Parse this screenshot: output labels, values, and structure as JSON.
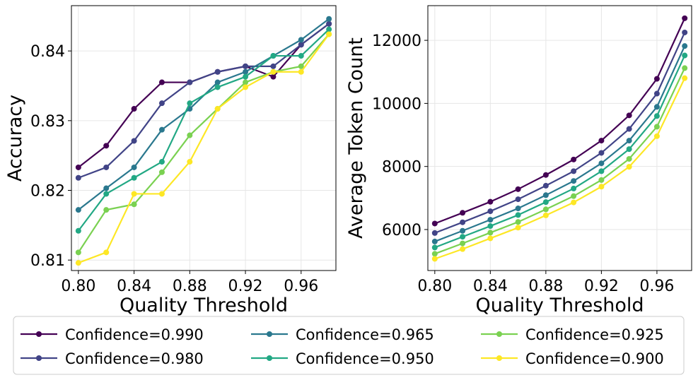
{
  "chart_data": [
    {
      "type": "line",
      "xlabel": "Quality Threshold",
      "ylabel": "Accuracy",
      "xlim": [
        0.795,
        0.985
      ],
      "ylim": [
        0.8085,
        0.8465
      ],
      "xticks": [
        0.8,
        0.84,
        0.88,
        0.92,
        0.96
      ],
      "xtick_labels": [
        "0.80",
        "0.84",
        "0.88",
        "0.92",
        "0.96"
      ],
      "yticks": [
        0.81,
        0.82,
        0.83,
        0.84
      ],
      "ytick_labels": [
        "0.81",
        "0.82",
        "0.83",
        "0.84"
      ],
      "grid": true,
      "x": [
        0.8,
        0.82,
        0.84,
        0.86,
        0.88,
        0.9,
        0.92,
        0.94,
        0.96,
        0.98
      ],
      "series": [
        {
          "name": "Confidence=0.990",
          "color": "#440154",
          "values": [
            0.8233,
            0.8264,
            0.8317,
            0.8355,
            0.8355,
            0.837,
            0.8378,
            0.8363,
            0.8409,
            0.8439
          ]
        },
        {
          "name": "Confidence=0.980",
          "color": "#414487",
          "values": [
            0.8218,
            0.8233,
            0.8271,
            0.8325,
            0.8355,
            0.837,
            0.8378,
            0.8378,
            0.8409,
            0.8439
          ]
        },
        {
          "name": "Confidence=0.965",
          "color": "#2a788e",
          "values": [
            0.8172,
            0.8203,
            0.8233,
            0.8287,
            0.8317,
            0.8355,
            0.837,
            0.8393,
            0.8416,
            0.8446
          ]
        },
        {
          "name": "Confidence=0.950",
          "color": "#22a884",
          "values": [
            0.8142,
            0.8195,
            0.8218,
            0.8241,
            0.8325,
            0.8348,
            0.8363,
            0.8393,
            0.8393,
            0.8431
          ]
        },
        {
          "name": "Confidence=0.925",
          "color": "#7ad151",
          "values": [
            0.8111,
            0.8172,
            0.818,
            0.8226,
            0.8279,
            0.8317,
            0.8355,
            0.837,
            0.8378,
            0.8424
          ]
        },
        {
          "name": "Confidence=0.900",
          "color": "#fde725",
          "values": [
            0.8096,
            0.8111,
            0.8195,
            0.8195,
            0.8241,
            0.8317,
            0.8348,
            0.837,
            0.837,
            0.8424
          ]
        }
      ]
    },
    {
      "type": "line",
      "xlabel": "Quality Threshold",
      "ylabel": "Average Token Count",
      "xlim": [
        0.795,
        0.985
      ],
      "ylim": [
        4700,
        13100
      ],
      "xticks": [
        0.8,
        0.84,
        0.88,
        0.92,
        0.96
      ],
      "xtick_labels": [
        "0.80",
        "0.84",
        "0.88",
        "0.92",
        "0.96"
      ],
      "yticks": [
        6000,
        8000,
        10000,
        12000
      ],
      "ytick_labels": [
        "6000",
        "8000",
        "10000",
        "12000"
      ],
      "grid": true,
      "x": [
        0.8,
        0.82,
        0.84,
        0.86,
        0.88,
        0.9,
        0.92,
        0.94,
        0.96,
        0.98
      ],
      "series": [
        {
          "name": "Confidence=0.990",
          "color": "#440154",
          "values": [
            6190,
            6530,
            6880,
            7280,
            7730,
            8220,
            8820,
            9620,
            10780,
            12700
          ]
        },
        {
          "name": "Confidence=0.980",
          "color": "#414487",
          "values": [
            5890,
            6230,
            6580,
            6960,
            7390,
            7850,
            8430,
            9190,
            10310,
            12250
          ]
        },
        {
          "name": "Confidence=0.965",
          "color": "#2a788e",
          "values": [
            5620,
            5960,
            6310,
            6670,
            7090,
            7540,
            8100,
            8820,
            9890,
            11820
          ]
        },
        {
          "name": "Confidence=0.950",
          "color": "#22a884",
          "values": [
            5430,
            5770,
            6110,
            6460,
            6870,
            7300,
            7850,
            8550,
            9600,
            11520
          ]
        },
        {
          "name": "Confidence=0.925",
          "color": "#7ad151",
          "values": [
            5230,
            5560,
            5900,
            6240,
            6640,
            7060,
            7570,
            8240,
            9260,
            11120
          ]
        },
        {
          "name": "Confidence=0.900",
          "color": "#fde725",
          "values": [
            5070,
            5380,
            5720,
            6060,
            6450,
            6860,
            7360,
            7990,
            8960,
            10800
          ]
        }
      ]
    }
  ]
}
